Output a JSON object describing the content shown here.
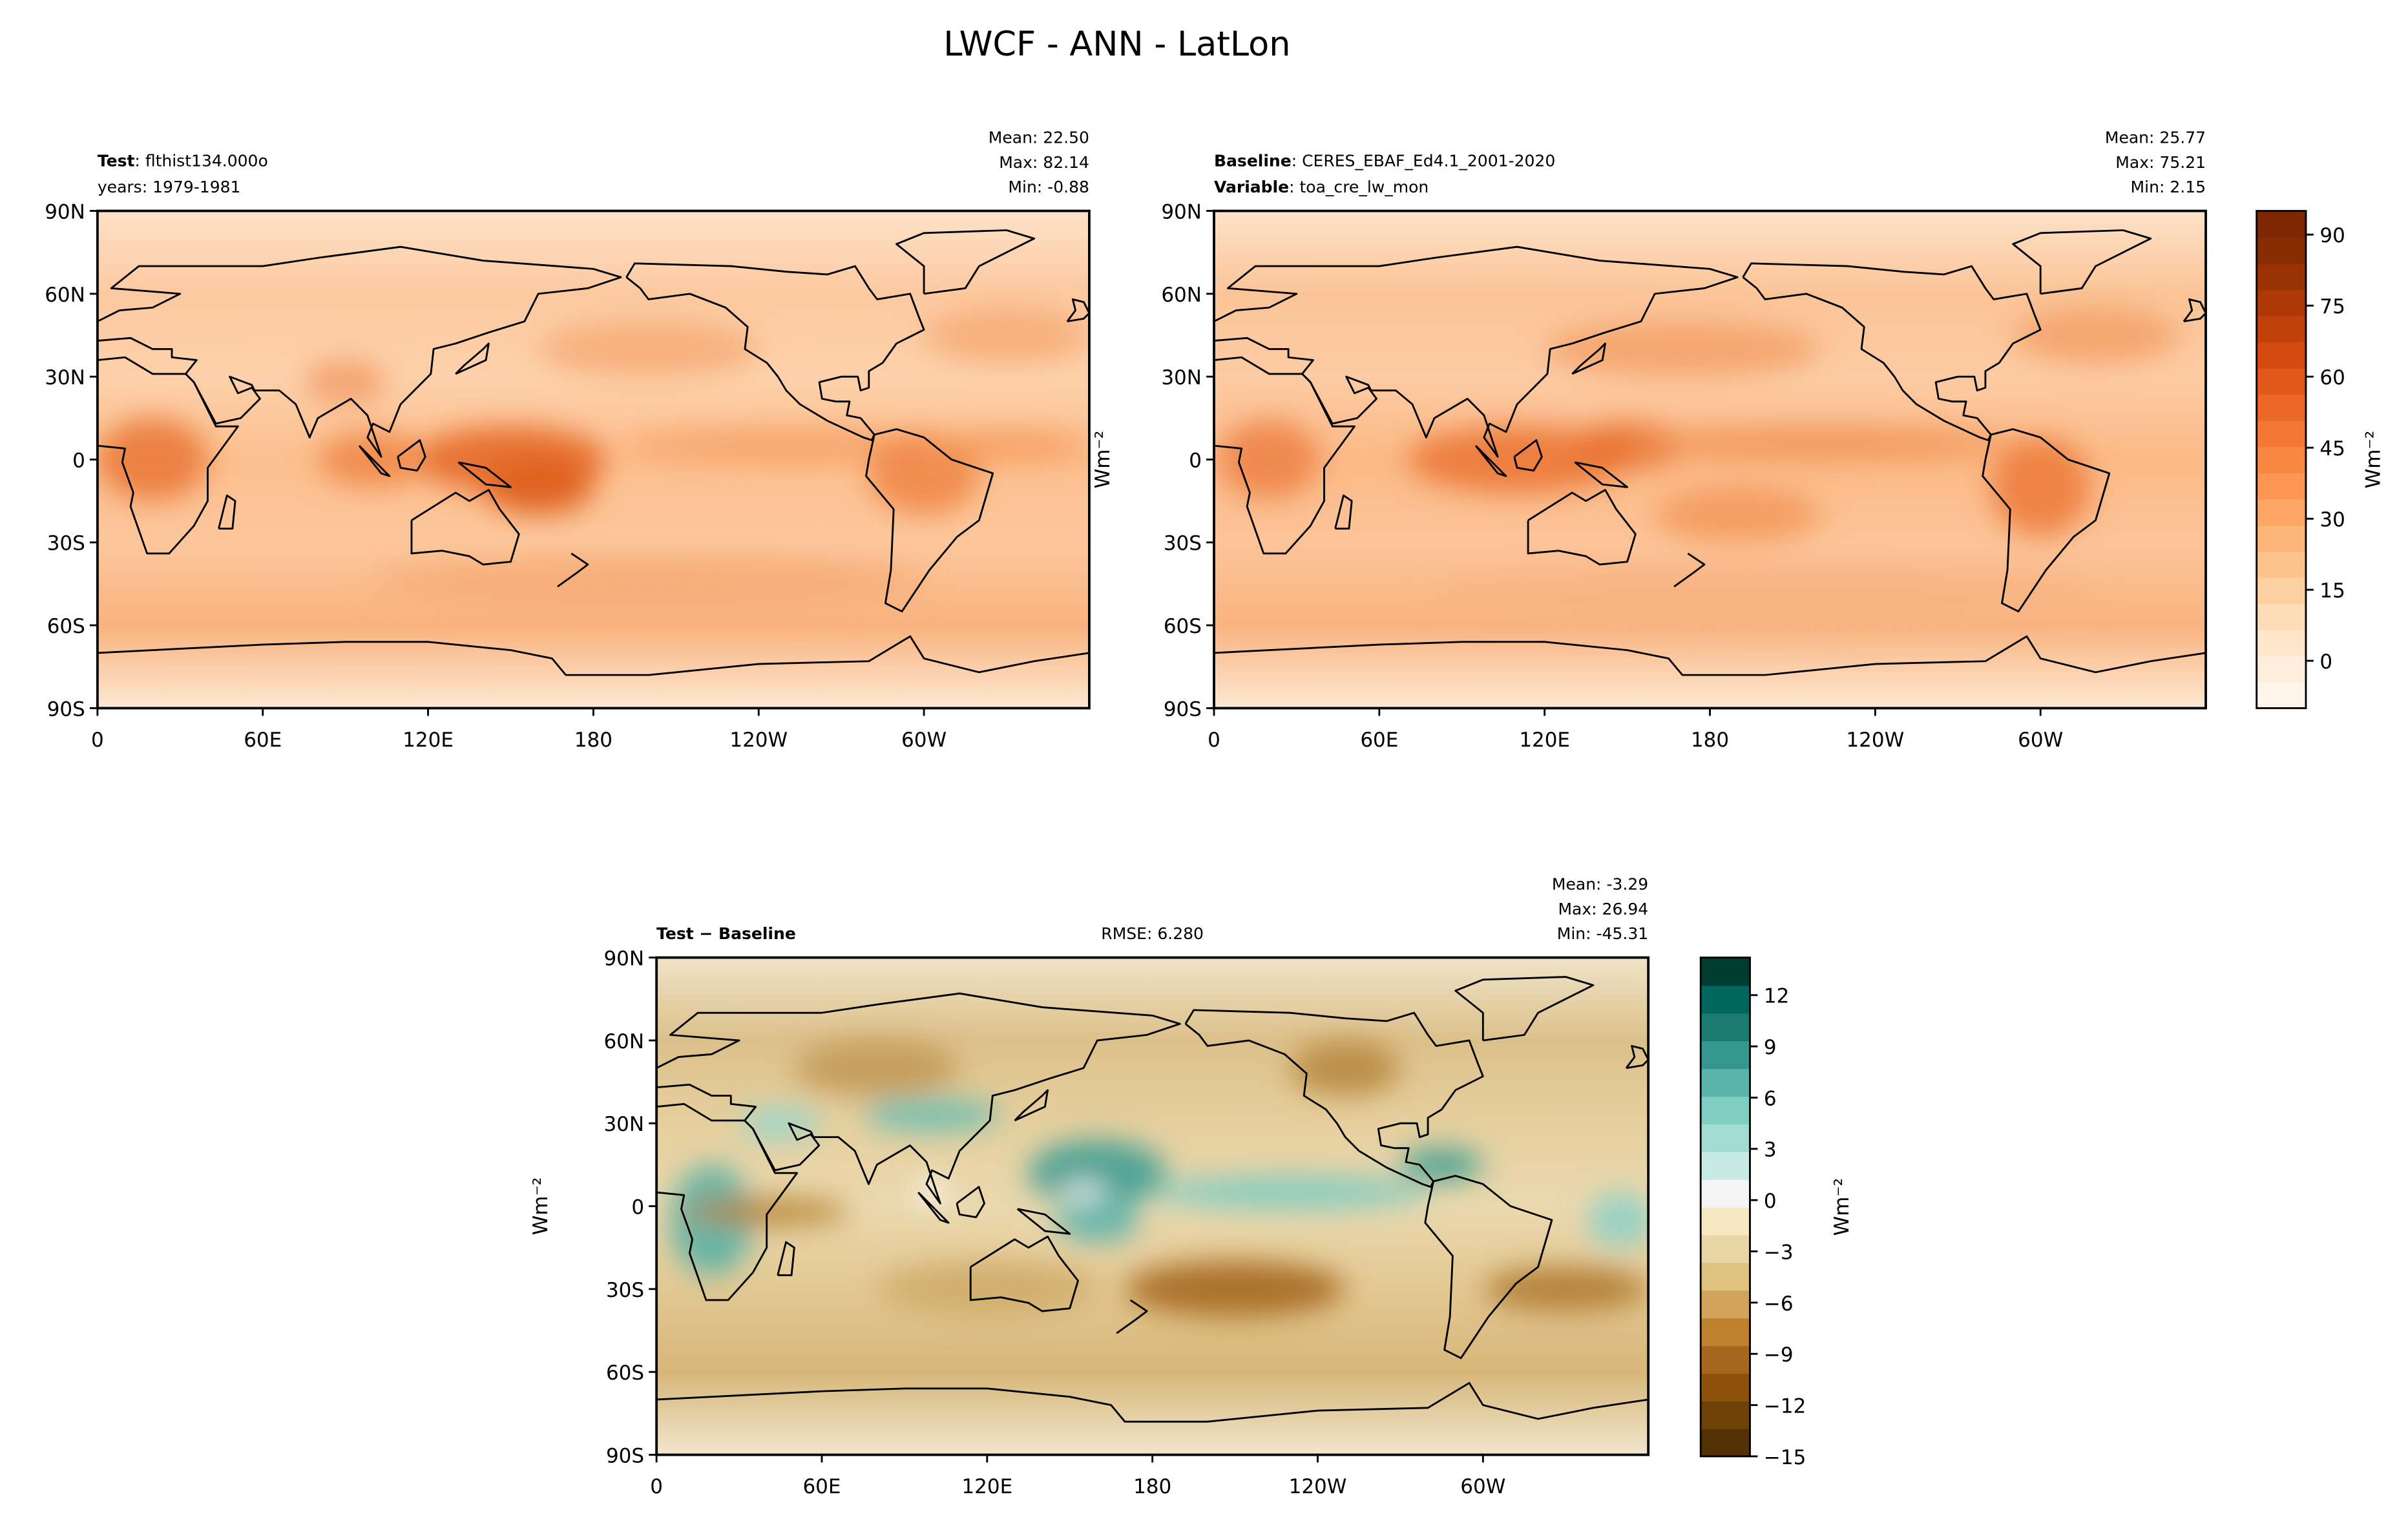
{
  "title": "LWCF - ANN - LatLon",
  "chart_data": [
    {
      "type": "contour-map",
      "label_name": "Test",
      "label_value": ": flthist134.000o",
      "label2_value": "years: 1979-1981",
      "stats": [
        "Mean: 22.50",
        "Max: 82.14",
        "Min: -0.88"
      ],
      "xlim": [
        0,
        360
      ],
      "ylim": [
        -90,
        90
      ],
      "xticks": [
        0,
        {
          "value": 60,
          "label": "60E"
        },
        {
          "value": 120,
          "label": "120E"
        },
        180,
        {
          "value": 240,
          "label": "120W"
        },
        {
          "value": 300,
          "label": "60W"
        }
      ],
      "yticks": [
        {
          "value": -90,
          "label": "90S"
        },
        {
          "value": -60,
          "label": "60S"
        },
        {
          "value": -30,
          "label": "30S"
        },
        0,
        {
          "value": 30,
          "label": "30N"
        },
        {
          "value": 60,
          "label": "60N"
        },
        {
          "value": 90,
          "label": "90N"
        }
      ]
    },
    {
      "type": "contour-map",
      "label_name": "Baseline",
      "label_value": ": CERES_EBAF_Ed4.1_2001-2020",
      "label2_name": "Variable",
      "label2_value": ": toa_cre_lw_mon",
      "stats": [
        "Mean: 25.77",
        "Max: 75.21",
        "Min:  2.15"
      ],
      "ylabel": "Wm⁻²",
      "xlim": [
        0,
        360
      ],
      "ylim": [
        -90,
        90
      ],
      "xticks": [
        0,
        {
          "value": 60,
          "label": "60E"
        },
        {
          "value": 120,
          "label": "120E"
        },
        180,
        {
          "value": 240,
          "label": "120W"
        },
        {
          "value": 300,
          "label": "60W"
        }
      ],
      "yticks": [
        {
          "value": -90,
          "label": "90S"
        },
        {
          "value": -60,
          "label": "60S"
        },
        {
          "value": -30,
          "label": "30S"
        },
        0,
        {
          "value": 30,
          "label": "30N"
        },
        {
          "value": 60,
          "label": "60N"
        },
        {
          "value": 90,
          "label": "90N"
        }
      ],
      "colorbar": {
        "label": "Wm⁻²",
        "clim": [
          -10,
          95
        ],
        "ticks": [
          0,
          15,
          30,
          45,
          60,
          75,
          90
        ],
        "colormap": [
          "#fff5eb",
          "#feeedb",
          "#fee6cb",
          "#fddcb8",
          "#fdd0a2",
          "#fdc38d",
          "#fdb57a",
          "#fda666",
          "#fd9652",
          "#f98742",
          "#f47735",
          "#ec6829",
          "#e1581d",
          "#d44b12",
          "#c2400b",
          "#ae3806",
          "#9a3104",
          "#862b04",
          "#7f2704"
        ]
      }
    },
    {
      "type": "contour-map",
      "label_name": "Test − Baseline",
      "rmse": "RMSE: 6.280",
      "stats": [
        "Mean: -3.29",
        "Max: 26.94",
        "Min: -45.31"
      ],
      "ylabel": "Wm⁻²",
      "xlim": [
        0,
        360
      ],
      "ylim": [
        -90,
        90
      ],
      "xticks": [
        0,
        {
          "value": 60,
          "label": "60E"
        },
        {
          "value": 120,
          "label": "120E"
        },
        180,
        {
          "value": 240,
          "label": "120W"
        },
        {
          "value": 300,
          "label": "60W"
        }
      ],
      "yticks": [
        {
          "value": -90,
          "label": "90S"
        },
        {
          "value": -60,
          "label": "60S"
        },
        {
          "value": -30,
          "label": "30S"
        },
        0,
        {
          "value": 30,
          "label": "30N"
        },
        {
          "value": 60,
          "label": "60N"
        },
        {
          "value": 90,
          "label": "90N"
        }
      ],
      "colorbar": {
        "label": "Wm⁻²",
        "clim": [
          -15,
          14.2
        ],
        "ticks": [
          {
            "value": -15,
            "label": "−15"
          },
          {
            "value": -12,
            "label": "−12"
          },
          {
            "value": -9,
            "label": "−9"
          },
          {
            "value": -6,
            "label": "−6"
          },
          {
            "value": -3,
            "label": "−3"
          },
          0,
          3,
          6,
          9,
          12
        ],
        "colormap": [
          "#543005",
          "#6e4109",
          "#8c510a",
          "#a6661e",
          "#bf812d",
          "#d0a25a",
          "#dfc27d",
          "#e9d6a6",
          "#f6e8c3",
          "#f5f5f5",
          "#c7eae5",
          "#a3dcd3",
          "#80cdc1",
          "#5ab4ac",
          "#35978f",
          "#1b7b73",
          "#01665e",
          "#003c30"
        ]
      }
    }
  ]
}
